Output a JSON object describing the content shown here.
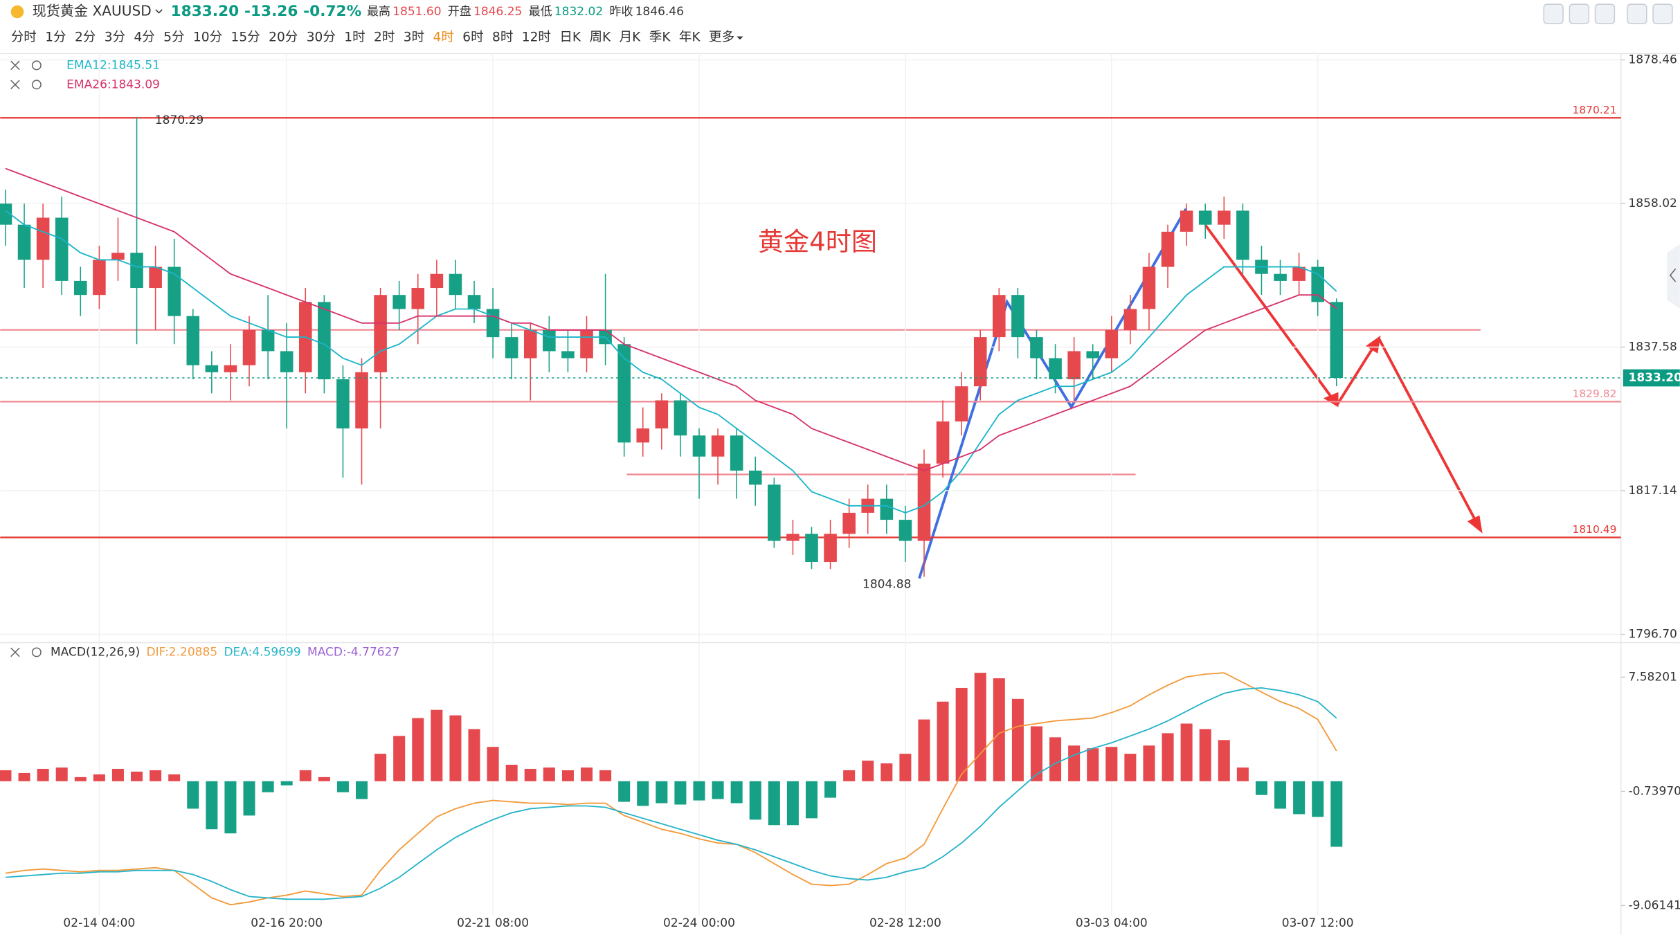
{
  "header": {
    "symbol": "现货黄金 XAUUSD",
    "last": "1833.20",
    "change": "-13.26",
    "change_pct": "-0.72%",
    "stats": [
      {
        "label": "最高",
        "value": "1851.60",
        "color": "#e5484d"
      },
      {
        "label": "开盘",
        "value": "1846.25",
        "color": "#e5484d"
      },
      {
        "label": "最低",
        "value": "1832.02",
        "color": "#0a9b82"
      },
      {
        "label": "昨收",
        "value": "1846.46",
        "color": "#333333"
      }
    ]
  },
  "toolbar": {
    "timeframes": [
      "分时",
      "1分",
      "2分",
      "3分",
      "4分",
      "5分",
      "10分",
      "15分",
      "20分",
      "30分",
      "1时",
      "2时",
      "3时",
      "4时",
      "6时",
      "8时",
      "12时",
      "日K",
      "周K",
      "月K",
      "季K",
      "年K",
      "更多"
    ],
    "active": 13
  },
  "chart_data": [
    {
      "type": "candlestick",
      "title": "黄金4时图",
      "up_color": "#e5484d",
      "down_color": "#16a085",
      "categories": [
        null,
        null,
        null,
        null,
        null,
        "02-14 04:00",
        null,
        null,
        null,
        null,
        null,
        null,
        null,
        null,
        null,
        "02-16 20:00",
        null,
        null,
        null,
        null,
        null,
        null,
        null,
        null,
        null,
        null,
        "02-21 08:00",
        null,
        null,
        null,
        null,
        null,
        null,
        null,
        null,
        null,
        null,
        "02-24 00:00",
        null,
        null,
        null,
        null,
        null,
        null,
        null,
        null,
        null,
        null,
        "02-28 12:00",
        null,
        null,
        null,
        null,
        null,
        null,
        null,
        null,
        null,
        null,
        "03-03 04:00",
        null,
        null,
        null,
        null,
        null,
        null,
        null,
        null,
        null,
        null,
        "03-07 12:00",
        null
      ],
      "open": [
        1858,
        1855,
        1850,
        1856,
        1847,
        1845,
        1850,
        1851,
        1846,
        1849,
        1842,
        1835,
        1834,
        1835,
        1840,
        1837,
        1834,
        1844,
        1833,
        1826,
        1834,
        1845,
        1843,
        1846,
        1848,
        1845,
        1843,
        1839,
        1836,
        1840,
        1837,
        1836,
        1840,
        1838,
        1824,
        1826,
        1830,
        1825,
        1822,
        1825,
        1820,
        1818,
        1810,
        1811,
        1807,
        1811,
        1814,
        1816,
        1813,
        1810,
        1821,
        1827,
        1832,
        1839,
        1845,
        1839,
        1836,
        1833,
        1837,
        1836,
        1840,
        1843,
        1849,
        1854,
        1857,
        1855,
        1857,
        1850,
        1848,
        1847,
        1849,
        1844
      ],
      "high": [
        1860,
        1858,
        1858,
        1859,
        1849,
        1852,
        1856,
        1870.29,
        1852,
        1853,
        1843,
        1837,
        1838,
        1842,
        1845,
        1841,
        1846,
        1845,
        1835,
        1836,
        1846,
        1847,
        1848,
        1850,
        1850,
        1847,
        1846,
        1841,
        1841,
        1842,
        1840,
        1842,
        1848,
        1839,
        1829,
        1831,
        1831,
        1826,
        1826,
        1826,
        1822,
        1819,
        1813,
        1812,
        1813,
        1816,
        1818,
        1818,
        1815,
        1823,
        1830,
        1834,
        1840,
        1846,
        1846,
        1840,
        1838,
        1839,
        1838,
        1842,
        1845,
        1851,
        1855,
        1858,
        1858,
        1859,
        1858,
        1852,
        1850,
        1851,
        1850,
        1844.5
      ],
      "low": [
        1852,
        1846,
        1846,
        1845,
        1842,
        1843,
        1847,
        1838,
        1840,
        1838,
        1833,
        1831,
        1830,
        1832,
        1833,
        1826,
        1831,
        1831,
        1819,
        1818,
        1826,
        1840,
        1838,
        1842,
        1843,
        1841,
        1836,
        1833,
        1830,
        1834,
        1834,
        1834,
        1835,
        1822,
        1822,
        1823,
        1822,
        1816,
        1818,
        1816,
        1815,
        1809,
        1808,
        1806,
        1806,
        1809,
        1811,
        1811,
        1807,
        1804.88,
        1819,
        1825,
        1830,
        1837,
        1836,
        1833,
        1831,
        1830,
        1833,
        1834,
        1838,
        1840,
        1846,
        1852,
        1853,
        1853,
        1848,
        1845,
        1845,
        1845,
        1842,
        1832.02
      ],
      "close": [
        1855,
        1850,
        1856,
        1847,
        1845,
        1850,
        1851,
        1846,
        1849,
        1842,
        1835,
        1834,
        1835,
        1840,
        1837,
        1834,
        1844,
        1833,
        1826,
        1834,
        1845,
        1843,
        1846,
        1848,
        1845,
        1843,
        1839,
        1836,
        1840,
        1837,
        1836,
        1840,
        1838,
        1824,
        1826,
        1830,
        1825,
        1822,
        1825,
        1820,
        1818,
        1810,
        1811,
        1807,
        1811,
        1814,
        1816,
        1813,
        1810,
        1821,
        1827,
        1832,
        1839,
        1845,
        1839,
        1836,
        1833,
        1837,
        1836,
        1840,
        1843,
        1849,
        1854,
        1857,
        1855,
        1857,
        1850,
        1848,
        1847,
        1849,
        1844,
        1833.2
      ],
      "series": [
        {
          "name": "EMA12:1845.51",
          "color": "#1cb5c9",
          "values": [
            1857,
            1855,
            1854,
            1853,
            1851,
            1850,
            1850,
            1849,
            1849,
            1848,
            1846,
            1844,
            1842,
            1841,
            1840,
            1839,
            1839,
            1838,
            1836,
            1835,
            1837,
            1838,
            1840,
            1842,
            1843,
            1843,
            1842,
            1841,
            1840,
            1839,
            1839,
            1839,
            1839,
            1836,
            1834,
            1833,
            1831,
            1829,
            1828,
            1826,
            1824,
            1822,
            1820,
            1817,
            1816,
            1815,
            1815,
            1815,
            1814,
            1815,
            1817,
            1820,
            1824,
            1828,
            1830,
            1831,
            1832,
            1832,
            1833,
            1834,
            1836,
            1839,
            1842,
            1845,
            1847,
            1849,
            1849,
            1849,
            1849,
            1849,
            1848,
            1845.51
          ]
        },
        {
          "name": "EMA26:1843.09",
          "color": "#d6336c",
          "values": [
            1863,
            1862,
            1861,
            1860,
            1859,
            1858,
            1857,
            1856,
            1855,
            1854,
            1852,
            1850,
            1848,
            1847,
            1846,
            1845,
            1844,
            1843,
            1842,
            1841,
            1841,
            1841,
            1842,
            1842,
            1842,
            1842,
            1842,
            1841,
            1841,
            1840,
            1840,
            1840,
            1840,
            1838,
            1837,
            1836,
            1835,
            1834,
            1833,
            1832,
            1830,
            1829,
            1828,
            1826,
            1825,
            1824,
            1823,
            1822,
            1821,
            1820,
            1821,
            1822,
            1823,
            1825,
            1826,
            1827,
            1828,
            1829,
            1830,
            1831,
            1832,
            1834,
            1836,
            1838,
            1840,
            1841,
            1842,
            1843,
            1844,
            1845,
            1845,
            1843.09
          ]
        }
      ],
      "levels": [
        {
          "value": 1870.21,
          "color": "#e53935"
        },
        {
          "value": 1810.49,
          "color": "#e53935"
        },
        {
          "value": 1829.82,
          "color": "#f08a93"
        }
      ],
      "current": {
        "value": 1833.2,
        "label": "1833.20",
        "color": "#0a9b82"
      },
      "high_mark": 1870.29,
      "low_mark": 1804.88,
      "ylim": [
        1795.52,
        1879.36
      ],
      "yticks": [
        1878.46,
        1858.02,
        1837.58,
        1817.14,
        {
          "value": 1796.7,
          "label": "1796.70"
        }
      ],
      "grid": true
    },
    {
      "type": "macd",
      "title": "MACD(12,26,9)",
      "up_color": "#e5484d",
      "down_color": "#16a085",
      "series": [
        {
          "name": "MACD:-4.77627",
          "color": "#9c5fd6",
          "kind": "bar",
          "values": [
            0.8,
            0.6,
            0.9,
            1.0,
            0.3,
            0.5,
            0.9,
            0.7,
            0.8,
            0.5,
            -2,
            -3.5,
            -3.8,
            -2.5,
            -0.8,
            -0.3,
            0.8,
            0.3,
            -0.8,
            -1.3,
            2.0,
            3.3,
            4.6,
            5.2,
            4.8,
            3.8,
            2.5,
            1.2,
            0.9,
            1.0,
            0.8,
            1.0,
            0.8,
            -1.5,
            -1.8,
            -1.6,
            -1.7,
            -1.4,
            -1.3,
            -1.6,
            -2.8,
            -3.2,
            -3.2,
            -2.7,
            -1.2,
            0.8,
            1.5,
            1.3,
            2.0,
            4.5,
            5.8,
            6.8,
            7.9,
            7.5,
            6.0,
            4.0,
            3.2,
            2.6,
            2.4,
            2.5,
            2.0,
            2.6,
            3.5,
            4.2,
            3.8,
            3.0,
            1.0,
            -1.0,
            -2.0,
            -2.4,
            -2.6,
            -4.77627
          ]
        },
        {
          "name": "DIF:2.20885",
          "color": "#f39a3c",
          "kind": "line",
          "values": [
            -6.7,
            -6.5,
            -6.4,
            -6.5,
            -6.6,
            -6.5,
            -6.5,
            -6.4,
            -6.3,
            -6.5,
            -7.5,
            -8.5,
            -9.0,
            -8.8,
            -8.5,
            -8.3,
            -8.0,
            -8.2,
            -8.4,
            -8.3,
            -6.5,
            -5.0,
            -3.8,
            -2.6,
            -2.0,
            -1.6,
            -1.4,
            -1.5,
            -1.6,
            -1.6,
            -1.7,
            -1.6,
            -1.6,
            -2.5,
            -3.0,
            -3.5,
            -3.8,
            -4.2,
            -4.5,
            -4.6,
            -5.2,
            -6.0,
            -6.8,
            -7.5,
            -7.6,
            -7.5,
            -6.8,
            -6.0,
            -5.6,
            -4.6,
            -2.0,
            0.5,
            2.0,
            3.5,
            4.0,
            4.2,
            4.4,
            4.5,
            4.6,
            5.0,
            5.5,
            6.3,
            7.0,
            7.6,
            7.8,
            7.9,
            7.2,
            6.5,
            5.8,
            5.3,
            4.5,
            2.20885
          ]
        },
        {
          "name": "DEA:4.59699",
          "color": "#27b3c9",
          "kind": "line",
          "values": [
            -7.0,
            -6.9,
            -6.8,
            -6.7,
            -6.7,
            -6.6,
            -6.6,
            -6.5,
            -6.5,
            -6.5,
            -6.8,
            -7.3,
            -7.9,
            -8.4,
            -8.5,
            -8.6,
            -8.6,
            -8.6,
            -8.5,
            -8.4,
            -7.8,
            -7.0,
            -6.0,
            -5.0,
            -4.1,
            -3.4,
            -2.8,
            -2.3,
            -2.0,
            -1.9,
            -1.8,
            -1.8,
            -1.9,
            -2.3,
            -2.7,
            -3.1,
            -3.5,
            -3.9,
            -4.3,
            -4.6,
            -5.0,
            -5.5,
            -6.0,
            -6.5,
            -6.9,
            -7.1,
            -7.2,
            -7.0,
            -6.6,
            -6.3,
            -5.5,
            -4.5,
            -3.3,
            -1.9,
            -0.7,
            0.5,
            1.3,
            1.9,
            2.4,
            2.8,
            3.3,
            3.8,
            4.4,
            5.1,
            5.8,
            6.4,
            6.7,
            6.8,
            6.6,
            6.3,
            5.8,
            4.59699
          ]
        }
      ],
      "ylim": [
        -9.8,
        10.1
      ],
      "yticks": [
        7.58201,
        {
          "value": -0.7397,
          "label": "-0.73970"
        },
        -9.06141
      ]
    }
  ]
}
